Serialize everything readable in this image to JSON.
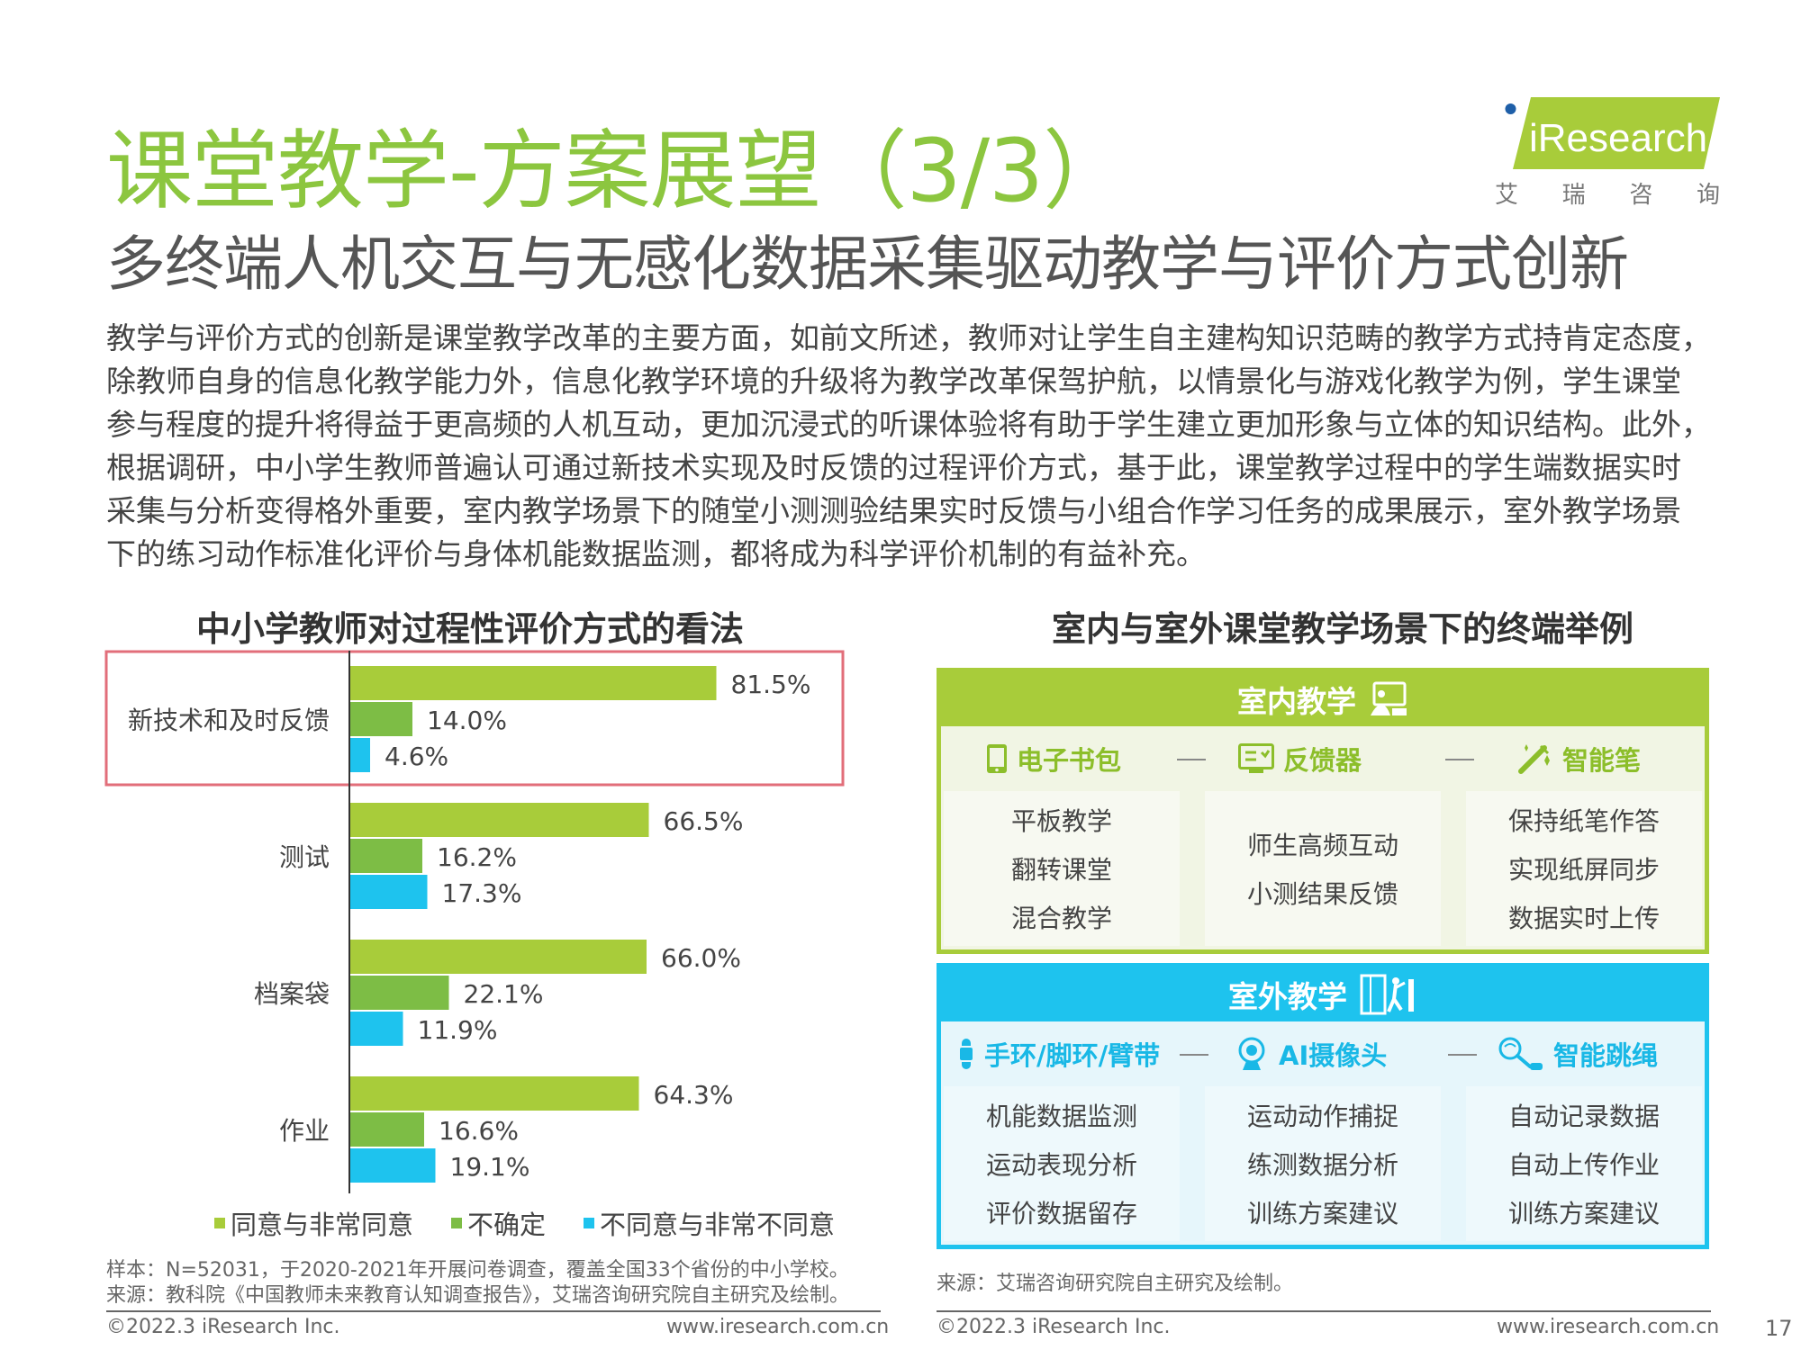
{
  "title": "课堂教学-方案展望（3/3）",
  "subtitle": "多终端人机交互与无感化数据采集驱动教学与评价方式创新",
  "logo": {
    "brand": "iResearch",
    "chars": [
      "艾",
      "瑞",
      "咨",
      "询"
    ]
  },
  "body": [
    "教学与评价方式的创新是课堂教学改革的主要方面，如前文所述，教师对让学生自主建构知识范畴的教学方式持肯定态度，",
    "除教师自身的信息化教学能力外，信息化教学环境的升级将为教学改革保驾护航，以情景化与游戏化教学为例，学生课堂",
    "参与程度的提升将得益于更高频的人机互动，更加沉浸式的听课体验将有助于学生建立更加形象与立体的知识结构。此外，",
    "根据调研，中小学生教师普遍认可通过新技术实现及时反馈的过程评价方式，基于此，课堂教学过程中的学生端数据实时",
    "采集与分析变得格外重要，室内教学场景下的随堂小测测验结果实时反馈与小组合作学习任务的成果展示，室外教学场景",
    "下的练习动作标准化评价与身体机能数据监测，都将成为科学评价机制的有益补充。"
  ],
  "chart_title": "中小学教师对过程性评价方式的看法",
  "terminal_title": "室内与室外课堂教学场景下的终端举例",
  "chart_data": {
    "type": "bar",
    "orientation": "horizontal",
    "title": "中小学教师对过程性评价方式的看法",
    "categories": [
      "新技术和及时反馈",
      "测试",
      "档案袋",
      "作业"
    ],
    "series": [
      {
        "name": "同意与非常同意",
        "values": [
          81.5,
          66.5,
          66.0,
          64.3
        ],
        "labels": [
          "81.5%",
          "66.5%",
          "66.0%",
          "64.3%"
        ],
        "color": "#a8cc3a"
      },
      {
        "name": "不确定",
        "values": [
          14.0,
          16.2,
          22.1,
          16.6
        ],
        "labels": [
          "14.0%",
          "16.2%",
          "22.1%",
          "16.6%"
        ],
        "color": "#7dbd45"
      },
      {
        "name": "不同意与非常不同意",
        "values": [
          4.6,
          17.3,
          11.9,
          19.1
        ],
        "labels": [
          "4.6%",
          "17.3%",
          "11.9%",
          "19.1%"
        ],
        "color": "#1ec3ee"
      }
    ],
    "xlim": [
      0,
      100
    ],
    "legend": "bottom",
    "highlight_category": "新技术和及时反馈",
    "highlight_color": "#e26e7a"
  },
  "note": {
    "sample": "样本：N=52031，于2020-2021年开展问卷调查，覆盖全国33个省份的中小学校。",
    "source": "来源：教科院《中国教师未来教育认知调查报告》，艾瑞咨询研究院自主研究及绘制。"
  },
  "source_right": "来源：艾瑞咨询研究院自主研究及绘制。",
  "footer": {
    "copyright": "©2022.3 iResearch Inc.",
    "website": "www.iresearch.com.cn",
    "page": "17"
  },
  "indoor": {
    "title": "室内教学",
    "color": "#a8cc3a",
    "devices": [
      {
        "name": "电子书包",
        "icon": "tablet-icon",
        "items": [
          "平板教学",
          "翻转课堂",
          "混合教学"
        ]
      },
      {
        "name": "反馈器",
        "icon": "clicker-icon",
        "items": [
          "师生高频互动",
          "小测结果反馈"
        ]
      },
      {
        "name": "智能笔",
        "icon": "pen-icon",
        "items": [
          "保持纸笔作答",
          "实现纸屏同步",
          "数据实时上传"
        ]
      }
    ]
  },
  "outdoor": {
    "title": "室外教学",
    "color": "#1ec3ee",
    "devices": [
      {
        "name": "手环/脚环/臂带",
        "icon": "wristband-icon",
        "items": [
          "机能数据监测",
          "运动表现分析",
          "评价数据留存"
        ]
      },
      {
        "name": "AI摄像头",
        "icon": "camera-icon",
        "items": [
          "运动动作捕捉",
          "练测数据分析",
          "训练方案建议"
        ]
      },
      {
        "name": "智能跳绳",
        "icon": "jump-rope-icon",
        "items": [
          "自动记录数据",
          "自动上传作业",
          "训练方案建议"
        ]
      }
    ]
  }
}
